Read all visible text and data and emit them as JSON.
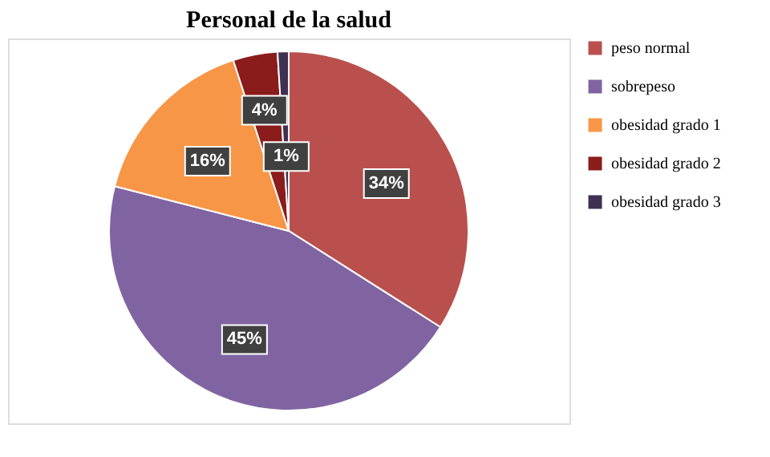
{
  "chart_data": {
    "type": "pie",
    "title": "Personal de la salud",
    "categories": [
      "peso normal",
      "sobrepeso",
      "obesidad grado 1",
      "obesidad grado 2",
      "obesidad grado 3"
    ],
    "values": [
      34,
      45,
      16,
      4,
      1
    ],
    "colors": [
      "#b9504d",
      "#8064a2",
      "#f79646",
      "#8b1c1c",
      "#3f3151"
    ],
    "value_labels": [
      "34%",
      "45%",
      "16%",
      "4%",
      "1%"
    ],
    "legend": "right"
  }
}
